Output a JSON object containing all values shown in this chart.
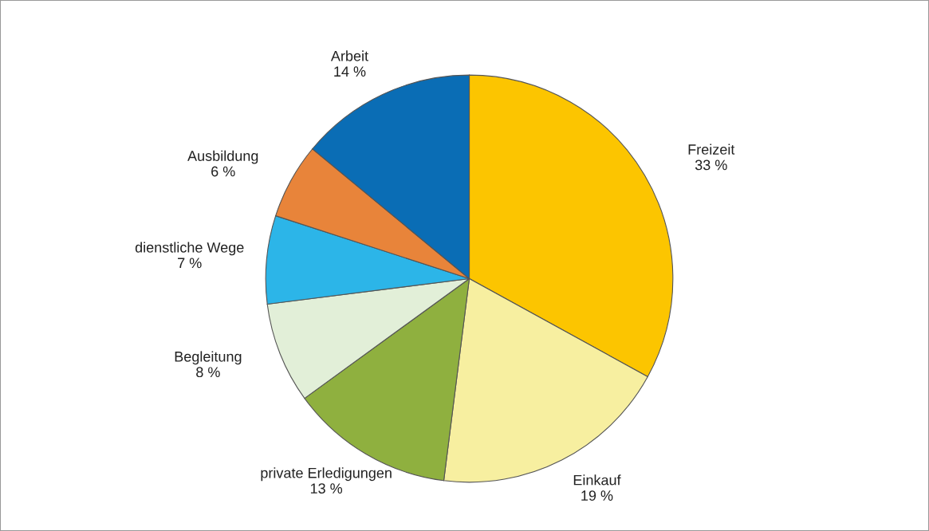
{
  "chart_data": {
    "type": "pie",
    "categories": [
      "Freizeit",
      "Einkauf",
      "private Erledigungen",
      "Begleitung",
      "dienstliche Wege",
      "Ausbildung",
      "Arbeit"
    ],
    "values": [
      33,
      19,
      13,
      8,
      7,
      6,
      14
    ],
    "value_labels": [
      "33 %",
      "19 %",
      "13 %",
      "8 %",
      "7 %",
      "6 %",
      "14 %"
    ],
    "colors": [
      "#fcc500",
      "#f7efa0",
      "#8fb03f",
      "#e2efd8",
      "#2cb5e8",
      "#e8843a",
      "#0a6db5"
    ]
  }
}
